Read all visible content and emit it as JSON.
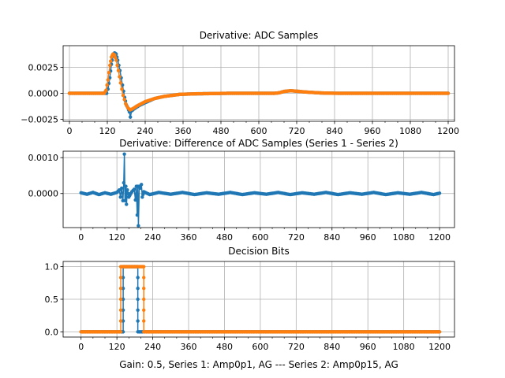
{
  "colors": {
    "series1": "#1f77b4",
    "series2": "#ff7f0e",
    "grid": "#b0b0b0",
    "axes": "#000000"
  },
  "xlabel": "Gain: 0.5, Series 1: Amp0p1, AG --- Series 2: Amp0p15, AG",
  "chart_data": [
    {
      "type": "scatter",
      "title": "Derivative: ADC Samples",
      "xlim": [
        -20,
        1220
      ],
      "ylim": [
        -0.0027,
        0.0046
      ],
      "xticks": [
        0,
        120,
        240,
        360,
        480,
        600,
        720,
        840,
        960,
        1080,
        1200
      ],
      "xtick_labels": [
        "0",
        "120",
        "240",
        "360",
        "480",
        "600",
        "720",
        "840",
        "960",
        "1080",
        "1200"
      ],
      "yticks": [
        -0.0025,
        0,
        0.0025
      ],
      "ytick_labels": [
        "−0.0025",
        "0.0000",
        "0.0025"
      ],
      "grid": true,
      "series": [
        {
          "name": "Series 1",
          "points": [
            [
              0,
              0
            ],
            [
              100,
              0
            ],
            [
              118,
              0
            ],
            [
              122,
              0.0004
            ],
            [
              128,
              0.0015
            ],
            [
              133,
              0.0028
            ],
            [
              138,
              0.0036
            ],
            [
              143,
              0.0039
            ],
            [
              148,
              0.0038
            ],
            [
              153,
              0.0032
            ],
            [
              160,
              0.0022
            ],
            [
              168,
              0.0008
            ],
            [
              175,
              -0.0004
            ],
            [
              180,
              -0.0011
            ],
            [
              185,
              -0.0014
            ],
            [
              190,
              -0.0018
            ],
            [
              193,
              -0.0023
            ],
            [
              197,
              -0.0017
            ],
            [
              205,
              -0.0015
            ],
            [
              220,
              -0.0012
            ],
            [
              240,
              -0.0009
            ],
            [
              270,
              -0.0005
            ],
            [
              300,
              -0.0003
            ],
            [
              350,
              -0.0001
            ],
            [
              400,
              -5e-05
            ],
            [
              500,
              0
            ],
            [
              600,
              0
            ],
            [
              650,
              0
            ],
            [
              665,
              5e-05
            ],
            [
              680,
              0.00018
            ],
            [
              700,
              0.00025
            ],
            [
              720,
              0.0002
            ],
            [
              760,
              0.0001
            ],
            [
              800,
              3e-05
            ],
            [
              850,
              0
            ],
            [
              1000,
              0
            ],
            [
              1200,
              0
            ]
          ]
        },
        {
          "name": "Series 2",
          "points": [
            [
              0,
              0
            ],
            [
              100,
              0
            ],
            [
              110,
              0
            ],
            [
              116,
              0.0003
            ],
            [
              122,
              0.0013
            ],
            [
              128,
              0.0027
            ],
            [
              133,
              0.0035
            ],
            [
              138,
              0.0038
            ],
            [
              143,
              0.0037
            ],
            [
              148,
              0.0032
            ],
            [
              155,
              0.0022
            ],
            [
              162,
              0.001
            ],
            [
              170,
              -0.0002
            ],
            [
              178,
              -0.001
            ],
            [
              185,
              -0.0014
            ],
            [
              192,
              -0.0016
            ],
            [
              200,
              -0.0015
            ],
            [
              215,
              -0.0012
            ],
            [
              240,
              -0.0008
            ],
            [
              270,
              -0.0005
            ],
            [
              300,
              -0.0003
            ],
            [
              350,
              -0.0001
            ],
            [
              400,
              -5e-05
            ],
            [
              500,
              0
            ],
            [
              600,
              0
            ],
            [
              650,
              0
            ],
            [
              665,
              5e-05
            ],
            [
              680,
              0.00018
            ],
            [
              700,
              0.00025
            ],
            [
              720,
              0.0002
            ],
            [
              760,
              0.0001
            ],
            [
              800,
              3e-05
            ],
            [
              850,
              0
            ],
            [
              1000,
              0
            ],
            [
              1200,
              0
            ]
          ]
        }
      ]
    },
    {
      "type": "scatter",
      "title": "Derivative: Difference of ADC Samples (Series 1 - Series 2)",
      "xlim": [
        -60,
        1250
      ],
      "ylim": [
        -0.00095,
        0.00118
      ],
      "xticks": [
        0,
        120,
        240,
        360,
        480,
        600,
        720,
        840,
        960,
        1080,
        1200
      ],
      "xtick_labels": [
        "0",
        "120",
        "240",
        "360",
        "480",
        "600",
        "720",
        "840",
        "960",
        "1080",
        "1200"
      ],
      "yticks": [
        0,
        0.001
      ],
      "ytick_labels": [
        "0.0000",
        "0.0010"
      ],
      "grid": true,
      "series": [
        {
          "name": "Series 1 - Series 2",
          "points": [
            [
              0,
              2e-05
            ],
            [
              20,
              -2e-05
            ],
            [
              40,
              3e-05
            ],
            [
              60,
              -3e-05
            ],
            [
              80,
              2e-05
            ],
            [
              100,
              -2e-05
            ],
            [
              120,
              3e-05
            ],
            [
              128,
              0.0001
            ],
            [
              132,
              -0.0001
            ],
            [
              136,
              0.00015
            ],
            [
              140,
              -0.0002
            ],
            [
              143,
              0.0003
            ],
            [
              145,
              0.0011
            ],
            [
              147,
              -0.0002
            ],
            [
              150,
              0.0002
            ],
            [
              152,
              -0.0003
            ],
            [
              155,
              0.0001
            ],
            [
              160,
              -0.0001
            ],
            [
              170,
              5e-05
            ],
            [
              178,
              0.00012
            ],
            [
              182,
              -0.00018
            ],
            [
              185,
              0.0002
            ],
            [
              188,
              -0.0006
            ],
            [
              190,
              0.0002
            ],
            [
              192,
              -0.0009
            ],
            [
              195,
              0.0002
            ],
            [
              198,
              0.00015
            ],
            [
              202,
              0.00025
            ],
            [
              205,
              -0.0001
            ],
            [
              210,
              5e-05
            ],
            [
              230,
              -3e-05
            ],
            [
              260,
              3e-05
            ],
            [
              300,
              -2e-05
            ],
            [
              340,
              3e-05
            ],
            [
              380,
              -3e-05
            ],
            [
              420,
              2e-05
            ],
            [
              460,
              -2e-05
            ],
            [
              500,
              3e-05
            ],
            [
              540,
              -3e-05
            ],
            [
              580,
              2e-05
            ],
            [
              620,
              -2e-05
            ],
            [
              660,
              3e-05
            ],
            [
              700,
              -3e-05
            ],
            [
              740,
              2e-05
            ],
            [
              780,
              -2e-05
            ],
            [
              820,
              3e-05
            ],
            [
              860,
              -3e-05
            ],
            [
              900,
              2e-05
            ],
            [
              940,
              -2e-05
            ],
            [
              980,
              3e-05
            ],
            [
              1020,
              -3e-05
            ],
            [
              1060,
              2e-05
            ],
            [
              1100,
              -2e-05
            ],
            [
              1140,
              3e-05
            ],
            [
              1180,
              -3e-05
            ],
            [
              1200,
              1e-05
            ]
          ]
        }
      ]
    },
    {
      "type": "line",
      "title": "Decision Bits",
      "xlim": [
        -60,
        1250
      ],
      "ylim": [
        -0.08,
        1.08
      ],
      "xticks": [
        0,
        120,
        240,
        360,
        480,
        600,
        720,
        840,
        960,
        1080,
        1200
      ],
      "xtick_labels": [
        "0",
        "120",
        "240",
        "360",
        "480",
        "600",
        "720",
        "840",
        "960",
        "1080",
        "1200"
      ],
      "yticks": [
        0,
        0.5,
        1
      ],
      "ytick_labels": [
        "0.0",
        "0.5",
        "1.0"
      ],
      "grid": true,
      "series": [
        {
          "name": "Series 1",
          "points": [
            [
              0,
              0
            ],
            [
              141,
              0
            ],
            [
              141,
              1
            ],
            [
              190,
              1
            ],
            [
              190,
              0
            ],
            [
              1200,
              0
            ]
          ]
        },
        {
          "name": "Series 2",
          "points": [
            [
              0,
              0
            ],
            [
              133,
              0
            ],
            [
              133,
              1
            ],
            [
              210,
              1
            ],
            [
              210,
              0
            ],
            [
              1200,
              0
            ]
          ]
        }
      ]
    }
  ]
}
